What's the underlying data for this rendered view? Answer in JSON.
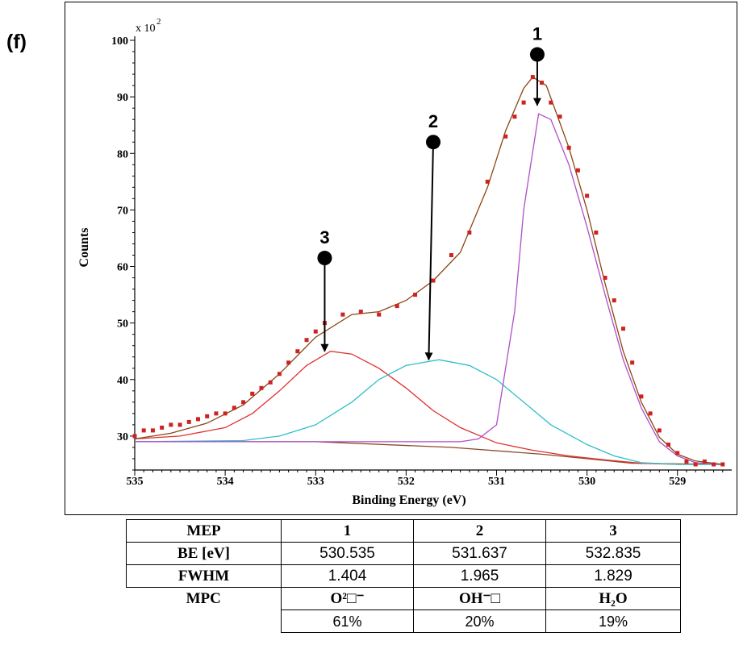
{
  "panel_label": "(f)",
  "chart_data": {
    "type": "line",
    "title": "",
    "xlabel": "Binding Energy (eV)",
    "ylabel": "Counts",
    "y_multiplier_label": "x 10",
    "y_multiplier_exp": "2",
    "xlim": [
      535.0,
      528.4
    ],
    "ylim": [
      24,
      100
    ],
    "x_ticks": [
      535,
      534,
      533,
      532,
      531,
      530,
      529
    ],
    "y_ticks": [
      30,
      40,
      50,
      60,
      70,
      80,
      90,
      100
    ],
    "colors": {
      "data": "#cc2222",
      "envelope": "#8b4513",
      "peak1": "#b04ec8",
      "peak2": "#2fbfc9",
      "peak3": "#e03030",
      "background": "#8b4a2b"
    },
    "series": [
      {
        "points": [
          [
            535.0,
            30.0
          ],
          [
            534.9,
            31.0
          ],
          [
            534.8,
            31.0
          ],
          [
            534.7,
            31.5
          ],
          [
            534.6,
            32.0
          ],
          [
            534.5,
            32.0
          ],
          [
            534.4,
            32.5
          ],
          [
            534.3,
            33.0
          ],
          [
            534.2,
            33.5
          ],
          [
            534.1,
            34.0
          ],
          [
            534.0,
            34.0
          ],
          [
            533.9,
            35.0
          ],
          [
            533.8,
            36.0
          ],
          [
            533.7,
            37.5
          ],
          [
            533.6,
            38.5
          ],
          [
            533.5,
            39.5
          ],
          [
            533.4,
            41.0
          ],
          [
            533.3,
            43.0
          ],
          [
            533.2,
            45.0
          ],
          [
            533.1,
            47.0
          ],
          [
            533.0,
            48.5
          ],
          [
            532.9,
            50.0
          ],
          [
            532.7,
            51.5
          ],
          [
            532.5,
            52.0
          ],
          [
            532.3,
            51.5
          ],
          [
            532.1,
            53.0
          ],
          [
            531.9,
            55.0
          ],
          [
            531.7,
            57.5
          ],
          [
            531.5,
            62.0
          ],
          [
            531.3,
            66.0
          ],
          [
            531.1,
            75.0
          ],
          [
            530.9,
            83.0
          ],
          [
            530.8,
            86.5
          ],
          [
            530.7,
            89.0
          ],
          [
            530.6,
            93.5
          ],
          [
            530.5,
            92.5
          ],
          [
            530.4,
            89.0
          ],
          [
            530.3,
            86.5
          ],
          [
            530.2,
            81.0
          ],
          [
            530.1,
            77.0
          ],
          [
            530.0,
            72.5
          ],
          [
            529.9,
            66.0
          ],
          [
            529.8,
            58.0
          ],
          [
            529.7,
            54.0
          ],
          [
            529.6,
            49.0
          ],
          [
            529.5,
            43.0
          ],
          [
            529.4,
            37.0
          ],
          [
            529.3,
            34.0
          ],
          [
            529.2,
            31.0
          ],
          [
            529.1,
            28.5
          ],
          [
            529.0,
            27.0
          ],
          [
            528.9,
            25.5
          ],
          [
            528.8,
            25.0
          ],
          [
            528.7,
            25.5
          ],
          [
            528.6,
            25.0
          ],
          [
            528.5,
            25.0
          ]
        ]
      },
      {
        "points": [
          [
            535.0,
            29.5
          ],
          [
            534.6,
            30.5
          ],
          [
            534.2,
            32.3
          ],
          [
            533.8,
            35.5
          ],
          [
            533.4,
            41.0
          ],
          [
            533.0,
            47.5
          ],
          [
            532.6,
            51.5
          ],
          [
            532.3,
            52.0
          ],
          [
            532.0,
            54.0
          ],
          [
            531.7,
            57.5
          ],
          [
            531.4,
            62.5
          ],
          [
            531.1,
            74.0
          ],
          [
            530.9,
            84.0
          ],
          [
            530.7,
            91.5
          ],
          [
            530.6,
            93.5
          ],
          [
            530.45,
            92.0
          ],
          [
            530.2,
            81.0
          ],
          [
            530.0,
            70.0
          ],
          [
            529.8,
            57.0
          ],
          [
            529.6,
            45.0
          ],
          [
            529.4,
            36.0
          ],
          [
            529.2,
            29.8
          ],
          [
            529.0,
            26.8
          ],
          [
            528.8,
            25.6
          ],
          [
            528.5,
            25.0
          ]
        ]
      },
      {
        "points": [
          [
            535.0,
            29.0
          ],
          [
            531.4,
            29.0
          ],
          [
            531.2,
            29.5
          ],
          [
            531.0,
            32.0
          ],
          [
            530.8,
            52.0
          ],
          [
            530.7,
            70.0
          ],
          [
            530.535,
            87.0
          ],
          [
            530.4,
            86.0
          ],
          [
            530.2,
            78.0
          ],
          [
            530.0,
            67.0
          ],
          [
            529.8,
            55.0
          ],
          [
            529.6,
            43.5
          ],
          [
            529.4,
            35.0
          ],
          [
            529.2,
            29.0
          ],
          [
            529.0,
            26.5
          ],
          [
            528.8,
            25.3
          ],
          [
            528.5,
            25.0
          ]
        ]
      },
      {
        "points": [
          [
            535.0,
            29.0
          ],
          [
            533.8,
            29.2
          ],
          [
            533.4,
            30.0
          ],
          [
            533.0,
            32.0
          ],
          [
            532.6,
            36.0
          ],
          [
            532.3,
            40.0
          ],
          [
            532.0,
            42.5
          ],
          [
            531.637,
            43.5
          ],
          [
            531.3,
            42.5
          ],
          [
            531.0,
            40.0
          ],
          [
            530.7,
            36.0
          ],
          [
            530.4,
            32.0
          ],
          [
            530.0,
            28.5
          ],
          [
            529.7,
            26.5
          ],
          [
            529.4,
            25.3
          ],
          [
            529.0,
            25.0
          ],
          [
            528.5,
            25.0
          ]
        ]
      },
      {
        "points": [
          [
            535.0,
            29.5
          ],
          [
            534.5,
            30.0
          ],
          [
            534.0,
            31.5
          ],
          [
            533.7,
            34.0
          ],
          [
            533.4,
            38.0
          ],
          [
            533.1,
            42.5
          ],
          [
            532.835,
            45.0
          ],
          [
            532.6,
            44.5
          ],
          [
            532.3,
            42.0
          ],
          [
            532.0,
            38.5
          ],
          [
            531.7,
            34.5
          ],
          [
            531.4,
            31.5
          ],
          [
            531.0,
            28.8
          ],
          [
            530.6,
            27.5
          ],
          [
            530.2,
            26.5
          ],
          [
            529.8,
            25.8
          ],
          [
            529.4,
            25.2
          ],
          [
            529.0,
            25.0
          ],
          [
            528.5,
            25.0
          ]
        ]
      },
      {
        "points": [
          [
            535.0,
            29.0
          ],
          [
            533.0,
            29.0
          ],
          [
            531.5,
            28.0
          ],
          [
            530.5,
            26.8
          ],
          [
            529.5,
            25.2
          ],
          [
            528.5,
            25.0
          ]
        ]
      }
    ],
    "markers": [
      {
        "label": "1",
        "start": [
          530.55,
          97.5
        ],
        "end": [
          530.55,
          88.5
        ]
      },
      {
        "label": "2",
        "start": [
          531.7,
          82.0
        ],
        "end": [
          531.75,
          43.5
        ]
      },
      {
        "label": "3",
        "start": [
          532.9,
          61.5
        ],
        "end": [
          532.9,
          45.0
        ]
      }
    ]
  },
  "table": {
    "header": {
      "label": "MEP",
      "cols": [
        "1",
        "2",
        "3"
      ]
    },
    "rows": [
      {
        "label": "BE [eV]",
        "cols": [
          "530.535",
          "531.637",
          "532.835"
        ]
      },
      {
        "label": "FWHM",
        "cols": [
          "1.404",
          "1.965",
          "1.829"
        ]
      },
      {
        "label": "MPC",
        "cols": [
          "O²□⁻",
          "OH⁻□",
          "H₂O"
        ]
      },
      {
        "label": "",
        "cols": [
          "61%",
          "20%",
          "19%"
        ]
      }
    ]
  }
}
